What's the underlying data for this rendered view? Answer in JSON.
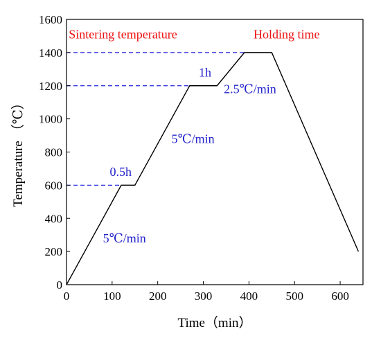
{
  "colors": {
    "line": "#000000",
    "guide": "#2222dd",
    "rate_text": "#2222cc",
    "label_text": "#ee1111"
  },
  "chart_data": {
    "type": "line",
    "title": "",
    "xlabel": "Time（min）",
    "ylabel": "Temperature （℃）",
    "xlim": [
      0,
      650
    ],
    "ylim": [
      0,
      1600
    ],
    "xticks": [
      0,
      100,
      200,
      300,
      400,
      500,
      600
    ],
    "yticks": [
      0,
      200,
      400,
      600,
      800,
      1000,
      1200,
      1400,
      1600
    ],
    "grid": false,
    "legend": "none",
    "series": [
      {
        "x": [
          0,
          120,
          150,
          270,
          330,
          390,
          450,
          640
        ],
        "y": [
          0,
          600,
          600,
          1200,
          1200,
          1400,
          1400,
          200
        ]
      }
    ],
    "guides": [
      {
        "y": 600,
        "x_end": 120
      },
      {
        "y": 1200,
        "x_end": 270
      },
      {
        "y": 1400,
        "x_end": 390
      }
    ],
    "annotations": [
      {
        "id": "sintering",
        "text": "Sintering temperature",
        "x": 5,
        "y": 1485,
        "color": "label_text"
      },
      {
        "id": "holding",
        "text": "Holding time",
        "x": 410,
        "y": 1485,
        "color": "label_text"
      },
      {
        "id": "hold1",
        "text": "1h",
        "x": 290,
        "y": 1255,
        "color": "rate_text"
      },
      {
        "id": "rate25",
        "text": "2.5℃/min",
        "x": 345,
        "y": 1155,
        "color": "rate_text"
      },
      {
        "id": "rate5b",
        "text": "5℃/min",
        "x": 230,
        "y": 855,
        "color": "rate_text"
      },
      {
        "id": "hold05",
        "text": "0.5h",
        "x": 95,
        "y": 655,
        "color": "rate_text"
      },
      {
        "id": "rate5a",
        "text": "5℃/min",
        "x": 80,
        "y": 255,
        "color": "rate_text"
      }
    ]
  }
}
